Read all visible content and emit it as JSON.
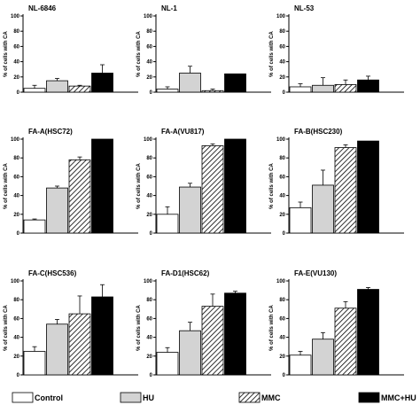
{
  "chart_data": {
    "type": "bar",
    "shared": {
      "ylabel": "% of cells with CA",
      "ylim": [
        0,
        100
      ],
      "yticks": [
        0,
        20,
        40,
        60,
        80,
        100
      ],
      "grid": false,
      "legend_position": "bottom"
    },
    "series": [
      {
        "name": "Control",
        "fill": "white"
      },
      {
        "name": "HU",
        "fill": "lightgray"
      },
      {
        "name": "MMC",
        "fill": "hatched"
      },
      {
        "name": "MMC+HU",
        "fill": "black"
      }
    ],
    "colors": {
      "hu": "#d3d3d3",
      "mmc_hatch": "#000000",
      "mmc_hu": "#000000",
      "axis": "#000000"
    },
    "panels": [
      {
        "title": "NL-6846",
        "values": [
          5,
          15,
          8,
          25
        ],
        "errors": [
          4,
          3,
          1,
          11
        ]
      },
      {
        "title": "NL-1",
        "values": [
          4,
          25,
          2,
          24
        ],
        "errors": [
          3,
          9,
          2,
          0
        ]
      },
      {
        "title": "NL-53",
        "values": [
          7,
          9,
          10,
          16
        ],
        "errors": [
          4,
          10,
          6,
          5
        ]
      },
      {
        "title": "FA-A(HSC72)",
        "values": [
          14,
          48,
          78,
          100
        ],
        "errors": [
          1,
          2,
          3,
          0
        ]
      },
      {
        "title": "FA-A(VU817)",
        "values": [
          20,
          49,
          93,
          100
        ],
        "errors": [
          8,
          4,
          2,
          0
        ]
      },
      {
        "title": "FA-B(HSC230)",
        "values": [
          27,
          51,
          91,
          98
        ],
        "errors": [
          6,
          16,
          3,
          0
        ]
      },
      {
        "title": "FA-C(HSC536)",
        "values": [
          25,
          54,
          65,
          83
        ],
        "errors": [
          5,
          5,
          19,
          13
        ]
      },
      {
        "title": "FA-D1(HSC62)",
        "values": [
          24,
          47,
          73,
          87
        ],
        "errors": [
          5,
          9,
          13,
          2
        ]
      },
      {
        "title": "FA-E(VU130)",
        "values": [
          21,
          38,
          71,
          91
        ],
        "errors": [
          4,
          7,
          7,
          2
        ]
      }
    ]
  }
}
